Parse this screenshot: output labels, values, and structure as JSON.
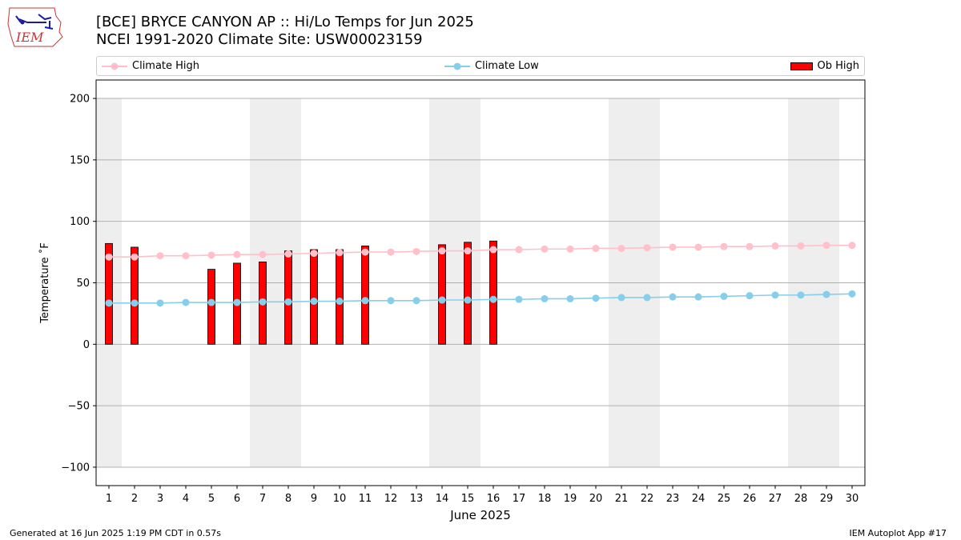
{
  "header": {
    "title_line1": "[BCE] BRYCE CANYON AP :: Hi/Lo Temps for Jun 2025",
    "title_line2": "NCEI 1991-2020 Climate Site: USW00023159"
  },
  "logo": {
    "text": "IEM"
  },
  "footer": {
    "generated": "Generated at 16 Jun 2025 1:19 PM CDT in 0.57s",
    "app": "IEM Autoplot App #17"
  },
  "colors": {
    "climate_high": "#ffc0cb",
    "climate_low": "#87ceeb",
    "ob_high": "#ff0000",
    "weekend_shade": "#eeeeee"
  },
  "chart_data": {
    "type": "bar",
    "xlabel": "June 2025",
    "ylabel": "Temperature ˚F",
    "xlim": [
      0.5,
      30.5
    ],
    "ylim": [
      -115,
      215
    ],
    "yticks": [
      -100,
      -50,
      0,
      50,
      100,
      150,
      200
    ],
    "ytick_labels": [
      "−100",
      "−50",
      "0",
      "50",
      "100",
      "150",
      "200"
    ],
    "x": [
      1,
      2,
      3,
      4,
      5,
      6,
      7,
      8,
      9,
      10,
      11,
      12,
      13,
      14,
      15,
      16,
      17,
      18,
      19,
      20,
      21,
      22,
      23,
      24,
      25,
      26,
      27,
      28,
      29,
      30
    ],
    "grid": "horizontal",
    "legend_placement": "top",
    "weekend_spans": [
      [
        0.5,
        1.5
      ],
      [
        6.5,
        8.5
      ],
      [
        13.5,
        15.5
      ],
      [
        20.5,
        22.5
      ],
      [
        27.5,
        29.5
      ]
    ],
    "series": [
      {
        "name": "Climate High",
        "type": "line",
        "values": [
          71,
          71,
          72,
          72,
          72.5,
          73,
          73,
          73.5,
          74,
          74.5,
          75,
          75,
          75.5,
          76,
          76,
          77,
          77,
          77.5,
          77.5,
          78,
          78,
          78.5,
          79,
          79,
          79.5,
          79.5,
          80,
          80,
          80.5,
          80.5
        ]
      },
      {
        "name": "Climate Low",
        "type": "line",
        "values": [
          33.5,
          33.5,
          33.5,
          34,
          34,
          34,
          34.5,
          34.5,
          35,
          35,
          35.5,
          35.5,
          35.5,
          36,
          36,
          36.5,
          36.5,
          37,
          37,
          37.5,
          38,
          38,
          38.5,
          38.5,
          39,
          39.5,
          40,
          40,
          40.5,
          41
        ]
      },
      {
        "name": "Ob High",
        "type": "bar",
        "values": [
          82,
          79,
          null,
          null,
          61,
          66,
          67,
          76,
          77,
          77,
          80,
          null,
          null,
          81,
          83,
          84,
          null,
          null,
          null,
          null,
          null,
          null,
          null,
          null,
          null,
          null,
          null,
          null,
          null,
          null
        ]
      }
    ]
  }
}
